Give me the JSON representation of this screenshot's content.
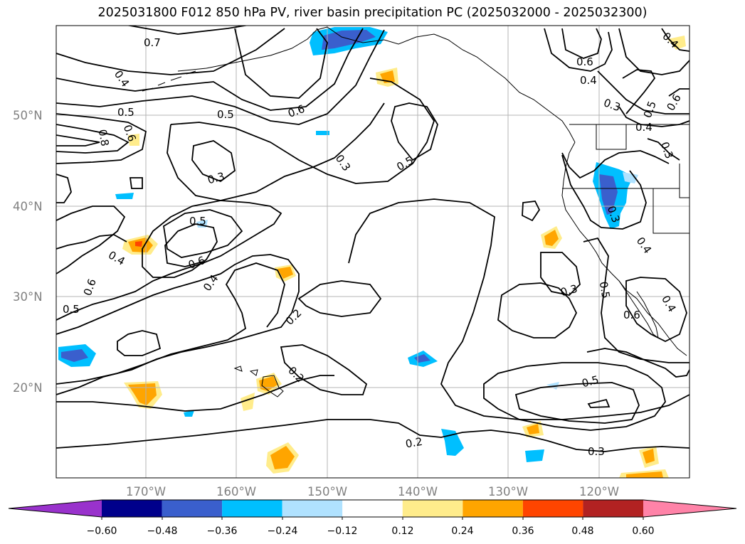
{
  "title": "2025031800 F012 850 hPa PV, river basin precipitation PC (2025032000 - 2025032300)",
  "map": {
    "lat_labels": [
      "50°N",
      "40°N",
      "30°N",
      "20°N"
    ],
    "lon_labels": [
      "170°W",
      "160°W",
      "150°W",
      "140°W",
      "130°W",
      "120°W"
    ],
    "contour_labels": [
      "0.7",
      "0.4",
      "0.5",
      "0.5",
      "0.6",
      "0.8",
      "0.6",
      "0.3",
      "0.3",
      "0.5",
      "0.5",
      "0.4",
      "0.6",
      "0.4",
      "0.6",
      "0.5",
      "0.2",
      "0.2",
      "0.2",
      "0.3",
      "0.5",
      "0.3",
      "0.6",
      "0.4",
      "0.4",
      "0.3",
      "0.5",
      "0.4",
      "0.3",
      "0.6",
      "0.3",
      "0.4",
      "0.5",
      "0.6",
      "0.4"
    ]
  },
  "colorbar": {
    "tick_labels": [
      "−0.60",
      "−0.48",
      "−0.36",
      "−0.24",
      "−0.12",
      "0.12",
      "0.24",
      "0.36",
      "0.48",
      "0.60"
    ],
    "colors": [
      "#9932cc",
      "#00008b",
      "#3a5fcd",
      "#00bfff",
      "#b0e2ff",
      "#ffffff",
      "#ffec8b",
      "#ffa500",
      "#ff4500",
      "#b22222",
      "#ff83a8"
    ]
  }
}
